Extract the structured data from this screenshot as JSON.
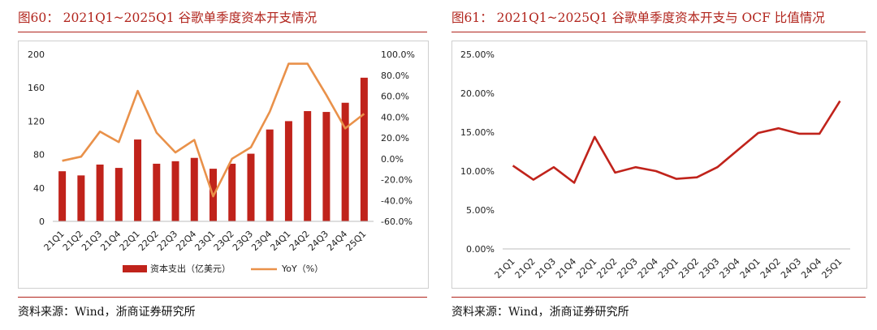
{
  "left": {
    "title": "图60：  2021Q1~2025Q1 谷歌单季度资本开支情况",
    "source": "资料来源：Wind，浙商证券研究所"
  },
  "right": {
    "title": "图61：  2021Q1~2025Q1 谷歌单季度资本开支与 OCF 比值情况",
    "source": "资料来源：Wind，浙商证券研究所"
  },
  "colors": {
    "bar": "#c0231b",
    "yoy": "#e9914a",
    "ratio": "#c0231b",
    "accent": "#b1241c"
  },
  "chart_data": [
    {
      "type": "bar",
      "title": "",
      "categories": [
        "21Q1",
        "21Q2",
        "21Q3",
        "21Q4",
        "22Q1",
        "22Q2",
        "22Q3",
        "22Q4",
        "23Q1",
        "23Q2",
        "23Q3",
        "23Q4",
        "24Q1",
        "24Q2",
        "24Q3",
        "24Q4",
        "25Q1"
      ],
      "ylim": [
        0,
        200
      ],
      "yticks": [
        "0",
        "40",
        "80",
        "120",
        "160",
        "200"
      ],
      "y2lim": [
        -60,
        100
      ],
      "y2ticks": [
        "-60.0%",
        "-40.0%",
        "-20.0%",
        "0.0%",
        "20.0%",
        "40.0%",
        "60.0%",
        "80.0%",
        "100.0%"
      ],
      "grid": false,
      "legend_position": "bottom",
      "series": [
        {
          "name": "资本支出（亿美元）",
          "type": "bar",
          "axis": "left",
          "values": [
            60,
            55,
            68,
            64,
            98,
            69,
            72,
            76,
            63,
            69,
            81,
            110,
            120,
            132,
            131,
            142,
            172
          ]
        },
        {
          "name": "YoY（%）",
          "type": "line",
          "axis": "right",
          "values": [
            -2,
            2,
            26,
            16,
            65,
            25,
            6,
            18,
            -36,
            0,
            11,
            45,
            91,
            91,
            61,
            29,
            43
          ]
        }
      ]
    },
    {
      "type": "line",
      "title": "",
      "categories": [
        "21Q1",
        "21Q2",
        "21Q3",
        "21Q4",
        "22Q1",
        "22Q2",
        "22Q3",
        "22Q4",
        "23Q1",
        "23Q2",
        "23Q3",
        "23Q4",
        "24Q1",
        "24Q2",
        "24Q3",
        "24Q4",
        "25Q1"
      ],
      "ylim": [
        0,
        25
      ],
      "yticks": [
        "0.00%",
        "5.00%",
        "10.00%",
        "15.00%",
        "20.00%",
        "25.00%"
      ],
      "grid": false,
      "legend_position": "none",
      "series": [
        {
          "values": [
            10.7,
            8.9,
            10.5,
            8.5,
            14.4,
            9.8,
            10.5,
            10.0,
            9.0,
            9.2,
            10.5,
            12.7,
            14.9,
            15.5,
            14.8,
            14.8,
            19.0
          ]
        }
      ]
    }
  ]
}
